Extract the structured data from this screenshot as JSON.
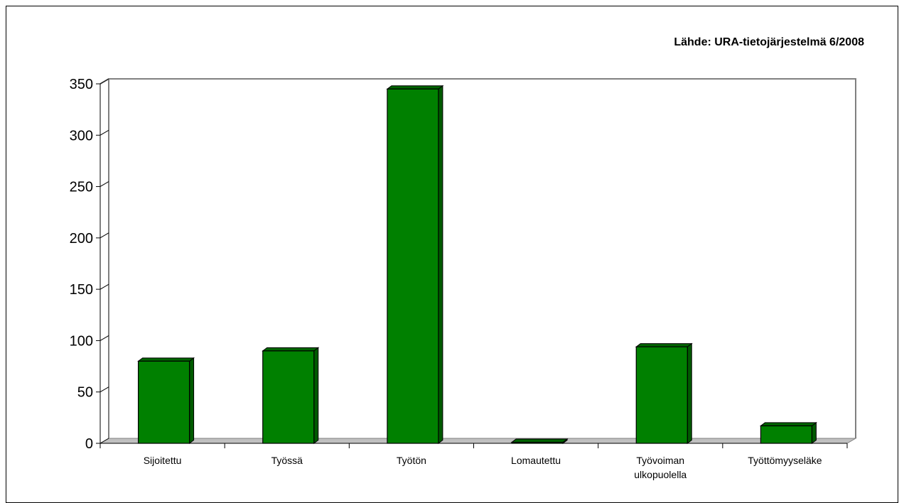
{
  "source_note": "Lähde: URA-tietojärjestelmä 6/2008",
  "colors": {
    "bar_front": "#008000",
    "bar_side": "#005a00",
    "bar_top": "#006400",
    "floor": "#c0c0c0",
    "axis": "#808080"
  },
  "chart_data": {
    "type": "bar",
    "title": "",
    "xlabel": "",
    "ylabel": "",
    "categories": [
      "Sijoitettu",
      "Työssä",
      "Työtön",
      "Lomautettu",
      "Työvoiman ulkopuolella",
      "Työttömyyseläke"
    ],
    "values": [
      80,
      90,
      345,
      1,
      94,
      17
    ],
    "ylim": [
      0,
      350
    ],
    "yticks": [
      0,
      50,
      100,
      150,
      200,
      250,
      300,
      350
    ],
    "grid": false,
    "legend": "none"
  }
}
